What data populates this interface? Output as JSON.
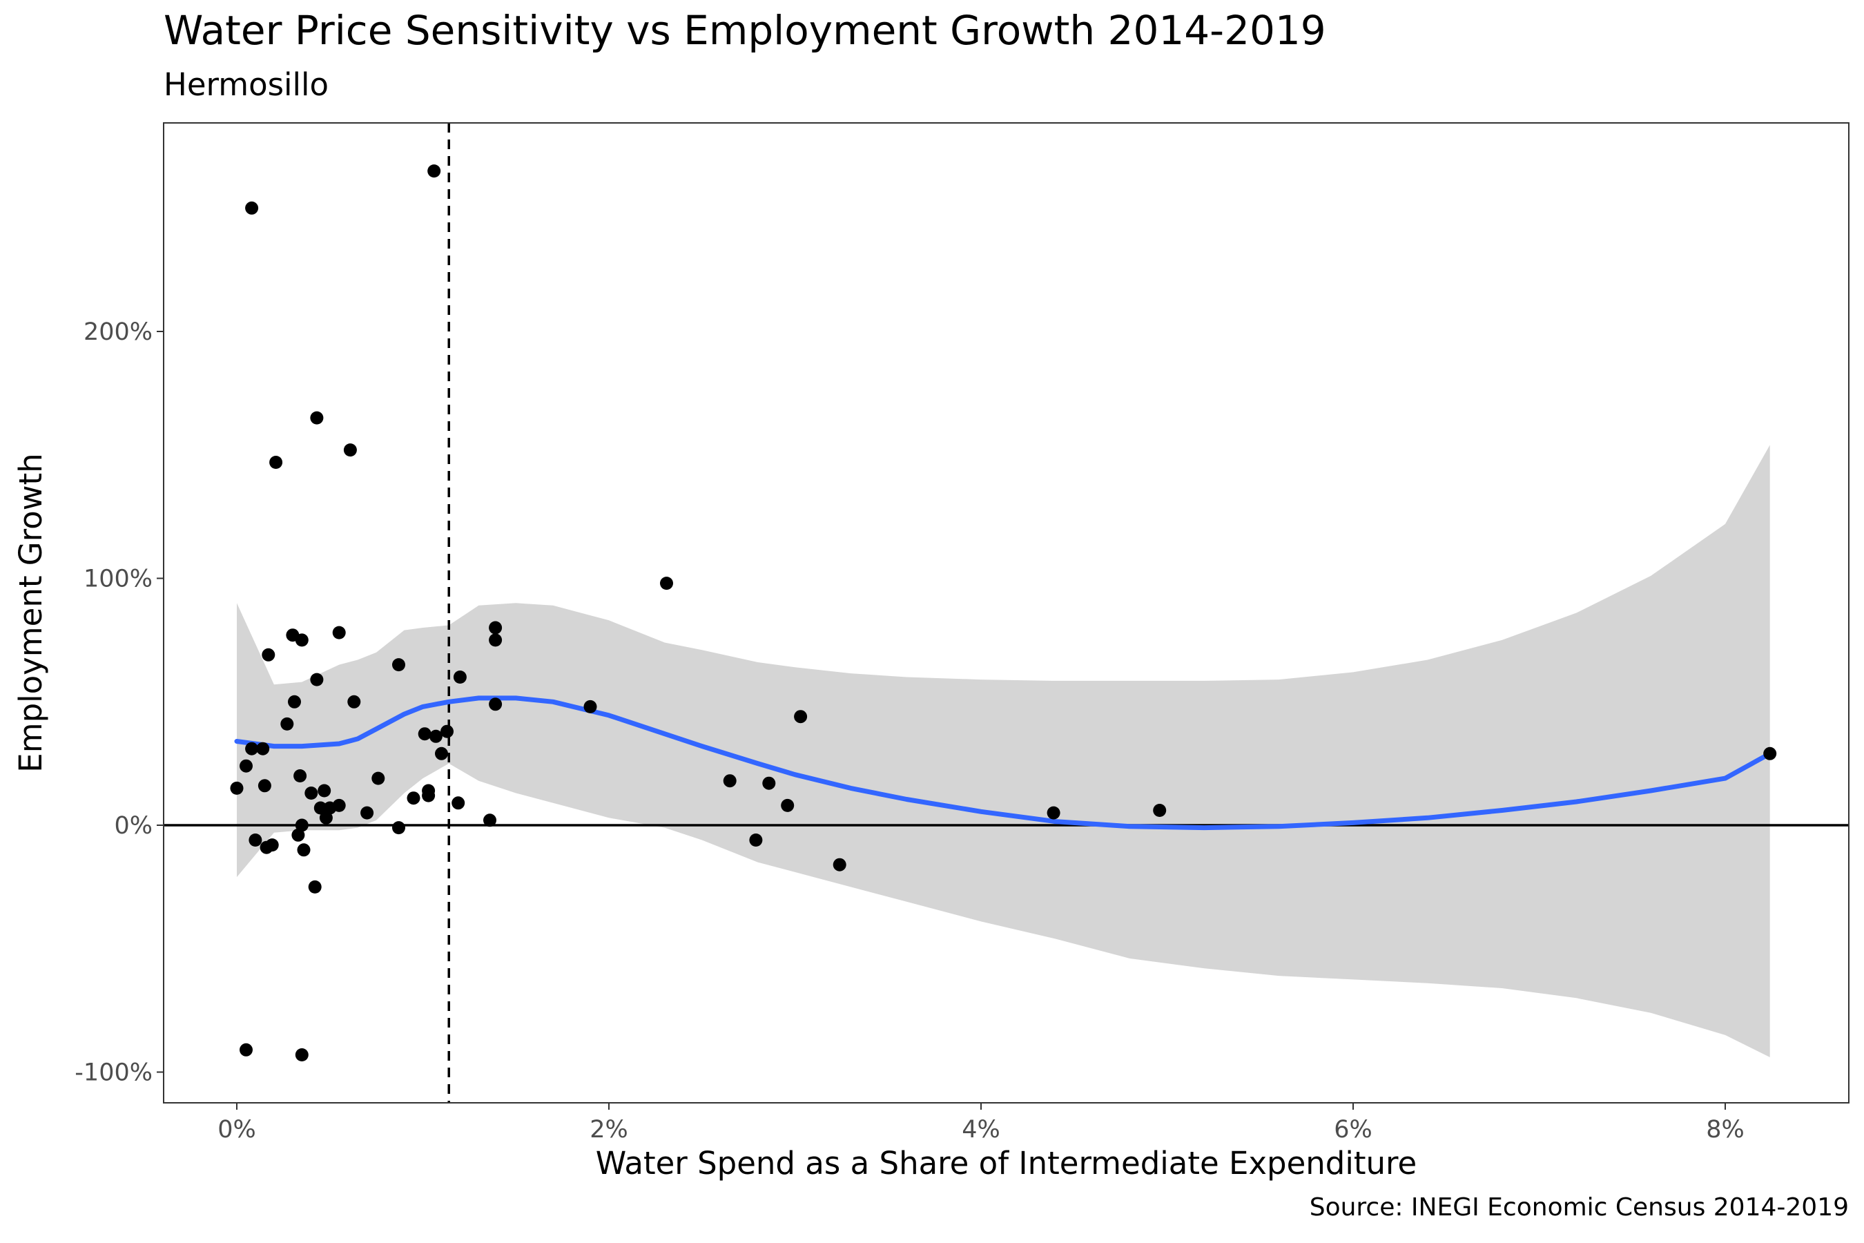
{
  "title": "Water Price Sensitivity vs Employment Growth 2014-2019",
  "subtitle": "Hermosillo",
  "caption": "Source: INEGI Economic Census 2014-2019",
  "colors": {
    "points": "#000000",
    "smooth_line": "#3366FF",
    "confidence_band": "#D5D5D5",
    "reference_lines": "#000000",
    "panel_border": "#333333"
  },
  "chart_data": {
    "type": "scatter",
    "xlabel": "Water Spend as a Share of Intermediate Expenditure",
    "ylabel": "Employment Growth",
    "xlim": [
      -0.4,
      8.6
    ],
    "ylim": [
      -112,
      284
    ],
    "x_ticks": [
      0,
      2,
      4,
      6,
      8
    ],
    "x_tick_labels": [
      "0%",
      "2%",
      "4%",
      "6%",
      "8%"
    ],
    "y_ticks": [
      -100,
      0,
      100,
      200
    ],
    "y_tick_labels": [
      "-100%",
      "0%",
      "100%",
      "200%"
    ],
    "grid": false,
    "legend": "none",
    "reference_lines": {
      "horizontal_solid_y": 0,
      "vertical_dashed_x": 1.14
    },
    "points": [
      {
        "x": 0.0,
        "y": 15
      },
      {
        "x": 0.05,
        "y": -91
      },
      {
        "x": 0.05,
        "y": 24
      },
      {
        "x": 0.08,
        "y": 250
      },
      {
        "x": 0.08,
        "y": 31
      },
      {
        "x": 0.1,
        "y": -6
      },
      {
        "x": 0.14,
        "y": 31
      },
      {
        "x": 0.15,
        "y": 16
      },
      {
        "x": 0.16,
        "y": -9
      },
      {
        "x": 0.17,
        "y": 69
      },
      {
        "x": 0.19,
        "y": -8
      },
      {
        "x": 0.21,
        "y": 147
      },
      {
        "x": 0.27,
        "y": 41
      },
      {
        "x": 0.3,
        "y": 77
      },
      {
        "x": 0.31,
        "y": 50
      },
      {
        "x": 0.33,
        "y": -4
      },
      {
        "x": 0.34,
        "y": 20
      },
      {
        "x": 0.35,
        "y": -93
      },
      {
        "x": 0.35,
        "y": 75
      },
      {
        "x": 0.35,
        "y": 0
      },
      {
        "x": 0.36,
        "y": -10
      },
      {
        "x": 0.4,
        "y": 13
      },
      {
        "x": 0.42,
        "y": -25
      },
      {
        "x": 0.43,
        "y": 165
      },
      {
        "x": 0.43,
        "y": 59
      },
      {
        "x": 0.45,
        "y": 7
      },
      {
        "x": 0.47,
        "y": 14
      },
      {
        "x": 0.48,
        "y": 3
      },
      {
        "x": 0.5,
        "y": 7
      },
      {
        "x": 0.55,
        "y": 78
      },
      {
        "x": 0.55,
        "y": 8
      },
      {
        "x": 0.61,
        "y": 152
      },
      {
        "x": 0.63,
        "y": 50
      },
      {
        "x": 0.7,
        "y": 5
      },
      {
        "x": 0.76,
        "y": 19
      },
      {
        "x": 0.87,
        "y": 65
      },
      {
        "x": 0.87,
        "y": -1
      },
      {
        "x": 0.95,
        "y": 11
      },
      {
        "x": 1.01,
        "y": 37
      },
      {
        "x": 1.03,
        "y": 14
      },
      {
        "x": 1.03,
        "y": 12
      },
      {
        "x": 1.06,
        "y": 265
      },
      {
        "x": 1.07,
        "y": 36
      },
      {
        "x": 1.1,
        "y": 29
      },
      {
        "x": 1.13,
        "y": 38
      },
      {
        "x": 1.19,
        "y": 9
      },
      {
        "x": 1.2,
        "y": 60
      },
      {
        "x": 1.36,
        "y": 2
      },
      {
        "x": 1.39,
        "y": 80
      },
      {
        "x": 1.39,
        "y": 75
      },
      {
        "x": 1.39,
        "y": 49
      },
      {
        "x": 1.9,
        "y": 48
      },
      {
        "x": 2.31,
        "y": 98
      },
      {
        "x": 2.65,
        "y": 18
      },
      {
        "x": 2.79,
        "y": -6
      },
      {
        "x": 2.86,
        "y": 17
      },
      {
        "x": 2.96,
        "y": 8
      },
      {
        "x": 3.03,
        "y": 44
      },
      {
        "x": 3.24,
        "y": -16
      },
      {
        "x": 4.39,
        "y": 5
      },
      {
        "x": 4.96,
        "y": 6
      },
      {
        "x": 8.24,
        "y": 29
      }
    ],
    "smooth_fit": {
      "x": [
        0.0,
        0.2,
        0.35,
        0.55,
        0.65,
        0.75,
        0.9,
        1.0,
        1.14,
        1.3,
        1.5,
        1.7,
        2.0,
        2.3,
        2.5,
        2.8,
        3.0,
        3.3,
        3.6,
        4.0,
        4.4,
        4.8,
        5.2,
        5.6,
        6.0,
        6.4,
        6.8,
        7.2,
        7.6,
        8.0,
        8.24
      ],
      "y": [
        34,
        32,
        32,
        33,
        35,
        39,
        45,
        48,
        50,
        51.5,
        51.5,
        50,
        44.5,
        37,
        32,
        25,
        20.5,
        15,
        10.5,
        5.5,
        1.5,
        -0.5,
        -1,
        -0.5,
        1,
        3,
        6,
        9.5,
        14,
        19,
        29
      ],
      "lower": [
        -21,
        -3,
        -2,
        -2,
        -1,
        2,
        13,
        19,
        25,
        18,
        13,
        9,
        3,
        -1,
        -6,
        -15,
        -19,
        -25,
        -31,
        -39,
        -46,
        -54,
        -58,
        -61,
        -62.5,
        -64,
        -66,
        -70,
        -76,
        -85,
        -94
      ],
      "upper": [
        90,
        57,
        58,
        65,
        67,
        70,
        79,
        80,
        81,
        89,
        90,
        89,
        83,
        74,
        71,
        66,
        64,
        61.5,
        60,
        59,
        58.5,
        58.5,
        58.5,
        59,
        62,
        67,
        75,
        86,
        101,
        122,
        154
      ]
    }
  }
}
